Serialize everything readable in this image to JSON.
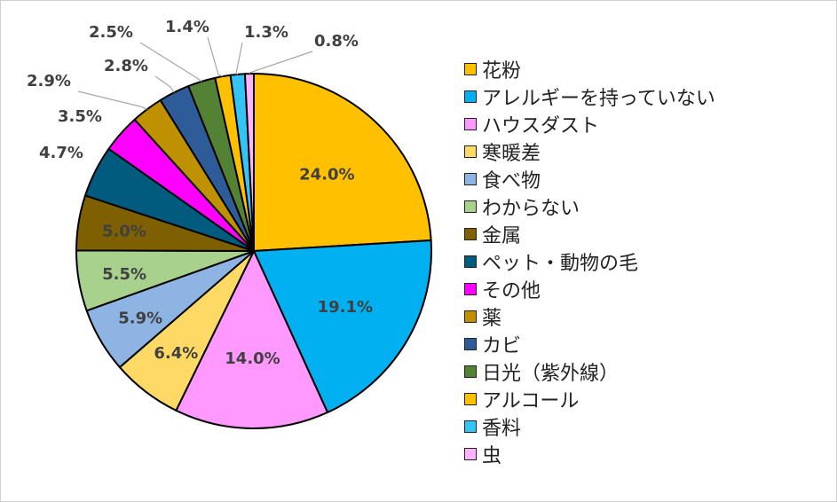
{
  "chart_data": {
    "type": "pie",
    "title": "",
    "legend_position": "right",
    "slices": [
      {
        "label": "花粉",
        "value": 24.0,
        "display": "24.0%",
        "color": "#FFC000"
      },
      {
        "label": "アレルギーを持っていない",
        "value": 19.1,
        "display": "19.1%",
        "color": "#00B0F0"
      },
      {
        "label": "ハウスダスト",
        "value": 14.0,
        "display": "14.0%",
        "color": "#FF99FF"
      },
      {
        "label": "寒暖差",
        "value": 6.4,
        "display": "6.4%",
        "color": "#FFD966"
      },
      {
        "label": "食べ物",
        "value": 5.9,
        "display": "5.9%",
        "color": "#8EB4E3"
      },
      {
        "label": "わからない",
        "value": 5.5,
        "display": "5.5%",
        "color": "#A9D18E"
      },
      {
        "label": "金属",
        "value": 5.0,
        "display": "5.0%",
        "color": "#7F6000"
      },
      {
        "label": "ペット・動物の毛",
        "value": 4.7,
        "display": "4.7%",
        "color": "#005B7F"
      },
      {
        "label": "その他",
        "value": 3.5,
        "display": "3.5%",
        "color": "#FF00FF"
      },
      {
        "label": "薬",
        "value": 2.9,
        "display": "2.9%",
        "color": "#BF9000"
      },
      {
        "label": "カビ",
        "value": 2.8,
        "display": "2.8%",
        "color": "#2E5C99"
      },
      {
        "label": "日光（紫外線）",
        "value": 2.5,
        "display": "2.5%",
        "color": "#548235"
      },
      {
        "label": "アルコール",
        "value": 1.4,
        "display": "1.4%",
        "color": "#FFC000"
      },
      {
        "label": "香料",
        "value": 1.3,
        "display": "1.3%",
        "color": "#33C3F5"
      },
      {
        "label": "虫",
        "value": 0.8,
        "display": "0.8%",
        "color": "#FFB3FF"
      }
    ]
  }
}
